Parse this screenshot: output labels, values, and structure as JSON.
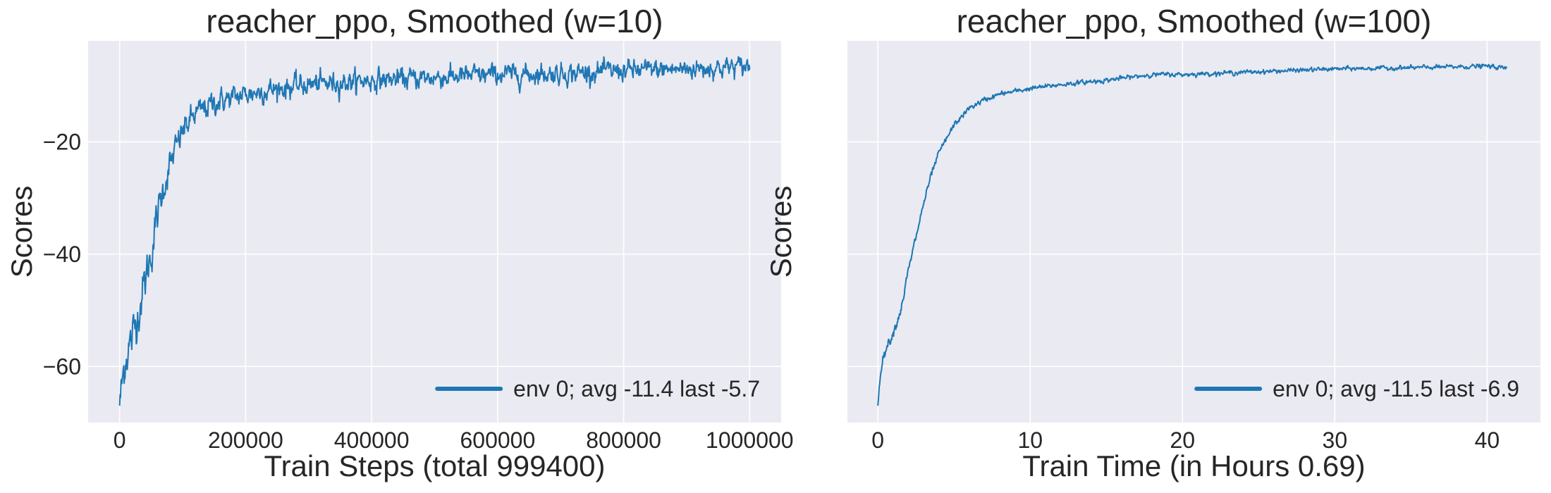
{
  "chart_data": [
    {
      "type": "line",
      "title": "reacher_ppo, Smoothed (w=10)",
      "xlabel": "Train Steps (total 999400)",
      "ylabel": "Scores",
      "xlim": [
        -50000,
        1050000
      ],
      "ylim": [
        -70,
        -2
      ],
      "xticks": [
        0,
        200000,
        400000,
        600000,
        800000,
        1000000
      ],
      "xtick_labels": [
        "0",
        "200000",
        "400000",
        "600000",
        "800000",
        "1000000"
      ],
      "yticks": [
        -60,
        -40,
        -20
      ],
      "ytick_labels": [
        "−60",
        "−40",
        "−20"
      ],
      "grid": true,
      "legend_position": "lower-right",
      "noise": 1.6,
      "color": "#1f77b4",
      "series": [
        {
          "name": "env 0; avg -11.4 last -5.7",
          "x": [
            0,
            5000,
            10000,
            20000,
            30000,
            40000,
            50000,
            60000,
            70000,
            80000,
            90000,
            100000,
            120000,
            150000,
            200000,
            250000,
            300000,
            400000,
            500000,
            600000,
            700000,
            800000,
            900000,
            1000000
          ],
          "y": [
            -67,
            -62,
            -58,
            -55,
            -50,
            -45,
            -40,
            -33,
            -28,
            -24,
            -21,
            -18,
            -15,
            -13,
            -11.5,
            -10.5,
            -9.8,
            -9,
            -8.5,
            -8,
            -7.8,
            -7.3,
            -7,
            -6.5
          ]
        }
      ]
    },
    {
      "type": "line",
      "title": "reacher_ppo, Smoothed (w=100)",
      "xlabel": "Train Time (in Hours 0.69)",
      "ylabel": "Scores",
      "xlim": [
        -2,
        43.5
      ],
      "ylim": [
        -70,
        -2
      ],
      "xticks": [
        0,
        10,
        20,
        30,
        40
      ],
      "xtick_labels": [
        "0",
        "10",
        "20",
        "30",
        "40"
      ],
      "yticks": [
        -60,
        -40,
        -20
      ],
      "ytick_labels": [
        "",
        "",
        ""
      ],
      "grid": true,
      "legend_position": "lower-right",
      "noise": 0.35,
      "color": "#1f77b4",
      "series": [
        {
          "name": "env 0; avg -11.5 last -6.9",
          "x": [
            0,
            0.2,
            0.5,
            1,
            1.5,
            2,
            2.5,
            3,
            3.5,
            4,
            5,
            6,
            7,
            8,
            10,
            12,
            15,
            18,
            20,
            25,
            30,
            35,
            40,
            41.3
          ],
          "y": [
            -67,
            -60,
            -57,
            -54,
            -50,
            -43,
            -37,
            -31,
            -26,
            -22,
            -17,
            -14,
            -12.5,
            -11.5,
            -10.5,
            -9.8,
            -9,
            -8,
            -8,
            -7.5,
            -7,
            -6.8,
            -6.5,
            -6.9
          ]
        }
      ]
    }
  ]
}
